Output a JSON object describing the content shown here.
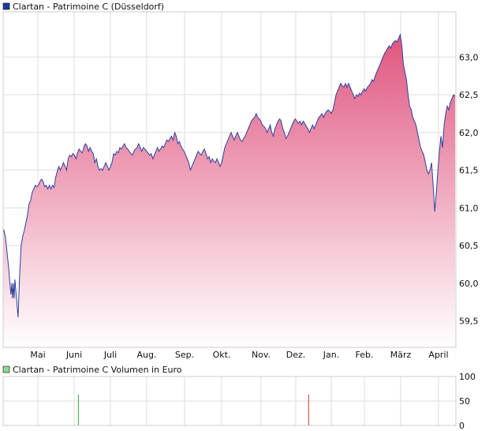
{
  "chart_data": [
    {
      "type": "area",
      "legend": "Clartan - Patrimoine C (Düsseldorf)",
      "x_ticks": [
        "Mai",
        "Juni",
        "Juli",
        "Aug.",
        "Sep.",
        "Okt.",
        "Nov.",
        "Dez.",
        "Jan.",
        "Feb.",
        "März",
        "April"
      ],
      "y_ticks": [
        "59,5",
        "60,0",
        "60,5",
        "61,0",
        "61,5",
        "62,0",
        "62,5",
        "63,0"
      ],
      "ylim": [
        59.15,
        63.6
      ],
      "grid": true,
      "line_color": "#2e3fa0",
      "fill_top_color": "#e0557f",
      "fill_bottom_color": "#ffffff",
      "points": [
        [
          0,
          60.67
        ],
        [
          1,
          60.7
        ],
        [
          3,
          60.6
        ],
        [
          5,
          60.4
        ],
        [
          7,
          60.2
        ],
        [
          9,
          59.95
        ],
        [
          10,
          59.85
        ],
        [
          11,
          60.0
        ],
        [
          12,
          59.8
        ],
        [
          13,
          60.0
        ],
        [
          14,
          59.8
        ],
        [
          15,
          60.05
        ],
        [
          17,
          59.8
        ],
        [
          19,
          59.55
        ],
        [
          21,
          60.1
        ],
        [
          23,
          60.5
        ],
        [
          25,
          60.62
        ],
        [
          27,
          60.7
        ],
        [
          29,
          60.8
        ],
        [
          31,
          60.9
        ],
        [
          33,
          61.05
        ],
        [
          35,
          61.1
        ],
        [
          37,
          61.2
        ],
        [
          39,
          61.25
        ],
        [
          41,
          61.3
        ],
        [
          43,
          61.28
        ],
        [
          45,
          61.3
        ],
        [
          47,
          61.35
        ],
        [
          49,
          61.38
        ],
        [
          51,
          61.35
        ],
        [
          53,
          61.28
        ],
        [
          55,
          61.3
        ],
        [
          57,
          61.25
        ],
        [
          59,
          61.3
        ],
        [
          61,
          61.25
        ],
        [
          63,
          61.3
        ],
        [
          65,
          61.27
        ],
        [
          67,
          61.4
        ],
        [
          69,
          61.48
        ],
        [
          71,
          61.55
        ],
        [
          73,
          61.5
        ],
        [
          75,
          61.55
        ],
        [
          77,
          61.6
        ],
        [
          79,
          61.55
        ],
        [
          81,
          61.5
        ],
        [
          83,
          61.65
        ],
        [
          85,
          61.7
        ],
        [
          87,
          61.68
        ],
        [
          89,
          61.72
        ],
        [
          91,
          61.7
        ],
        [
          93,
          61.65
        ],
        [
          95,
          61.73
        ],
        [
          97,
          61.78
        ],
        [
          99,
          61.75
        ],
        [
          101,
          61.73
        ],
        [
          103,
          61.8
        ],
        [
          105,
          61.85
        ],
        [
          107,
          61.82
        ],
        [
          109,
          61.75
        ],
        [
          111,
          61.8
        ],
        [
          113,
          61.75
        ],
        [
          115,
          61.72
        ],
        [
          117,
          61.6
        ],
        [
          119,
          61.65
        ],
        [
          121,
          61.55
        ],
        [
          123,
          61.5
        ],
        [
          125,
          61.52
        ],
        [
          127,
          61.5
        ],
        [
          129,
          61.55
        ],
        [
          131,
          61.6
        ],
        [
          133,
          61.55
        ],
        [
          135,
          61.5
        ],
        [
          137,
          61.55
        ],
        [
          139,
          61.6
        ],
        [
          141,
          61.72
        ],
        [
          143,
          61.7
        ],
        [
          145,
          61.75
        ],
        [
          147,
          61.73
        ],
        [
          149,
          61.8
        ],
        [
          151,
          61.78
        ],
        [
          153,
          61.82
        ],
        [
          155,
          61.85
        ],
        [
          157,
          61.8
        ],
        [
          159,
          61.78
        ],
        [
          161,
          61.75
        ],
        [
          163,
          61.72
        ],
        [
          165,
          61.7
        ],
        [
          167,
          61.75
        ],
        [
          169,
          61.78
        ],
        [
          171,
          61.8
        ],
        [
          173,
          61.85
        ],
        [
          175,
          61.8
        ],
        [
          177,
          61.75
        ],
        [
          179,
          61.8
        ],
        [
          181,
          61.78
        ],
        [
          183,
          61.75
        ],
        [
          185,
          61.73
        ],
        [
          187,
          61.7
        ],
        [
          189,
          61.72
        ],
        [
          191,
          61.65
        ],
        [
          193,
          61.7
        ],
        [
          195,
          61.75
        ],
        [
          197,
          61.8
        ],
        [
          199,
          61.75
        ],
        [
          201,
          61.78
        ],
        [
          203,
          61.82
        ],
        [
          205,
          61.8
        ],
        [
          207,
          61.85
        ],
        [
          209,
          61.9
        ],
        [
          211,
          61.88
        ],
        [
          213,
          61.92
        ],
        [
          215,
          61.95
        ],
        [
          217,
          61.9
        ],
        [
          219,
          62.0
        ],
        [
          221,
          61.95
        ],
        [
          223,
          61.85
        ],
        [
          225,
          61.88
        ],
        [
          227,
          61.82
        ],
        [
          229,
          61.78
        ],
        [
          231,
          61.75
        ],
        [
          233,
          61.7
        ],
        [
          235,
          61.65
        ],
        [
          237,
          61.6
        ],
        [
          239,
          61.5
        ],
        [
          241,
          61.55
        ],
        [
          243,
          61.6
        ],
        [
          245,
          61.65
        ],
        [
          247,
          61.7
        ],
        [
          249,
          61.75
        ],
        [
          251,
          61.72
        ],
        [
          253,
          61.7
        ],
        [
          255,
          61.75
        ],
        [
          257,
          61.78
        ],
        [
          259,
          61.72
        ],
        [
          261,
          61.65
        ],
        [
          263,
          61.68
        ],
        [
          265,
          61.6
        ],
        [
          267,
          61.65
        ],
        [
          269,
          61.62
        ],
        [
          271,
          61.6
        ],
        [
          273,
          61.65
        ],
        [
          275,
          61.6
        ],
        [
          277,
          61.55
        ],
        [
          279,
          61.6
        ],
        [
          281,
          61.7
        ],
        [
          283,
          61.8
        ],
        [
          285,
          61.85
        ],
        [
          287,
          61.9
        ],
        [
          289,
          61.95
        ],
        [
          291,
          62.0
        ],
        [
          293,
          61.95
        ],
        [
          295,
          61.9
        ],
        [
          297,
          61.95
        ],
        [
          299,
          62.0
        ],
        [
          301,
          61.95
        ],
        [
          303,
          61.9
        ],
        [
          305,
          61.88
        ],
        [
          307,
          61.92
        ],
        [
          309,
          61.95
        ],
        [
          311,
          62.0
        ],
        [
          313,
          62.05
        ],
        [
          315,
          62.1
        ],
        [
          317,
          62.15
        ],
        [
          319,
          62.18
        ],
        [
          321,
          62.2
        ],
        [
          323,
          62.25
        ],
        [
          325,
          62.2
        ],
        [
          327,
          62.18
        ],
        [
          329,
          62.15
        ],
        [
          331,
          62.1
        ],
        [
          333,
          62.08
        ],
        [
          335,
          62.05
        ],
        [
          337,
          62.0
        ],
        [
          339,
          62.05
        ],
        [
          341,
          62.1
        ],
        [
          343,
          62.0
        ],
        [
          345,
          61.95
        ],
        [
          347,
          62.05
        ],
        [
          349,
          62.1
        ],
        [
          351,
          62.15
        ],
        [
          353,
          62.18
        ],
        [
          355,
          62.15
        ],
        [
          357,
          62.05
        ],
        [
          359,
          62.0
        ],
        [
          361,
          61.92
        ],
        [
          363,
          61.95
        ],
        [
          365,
          62.0
        ],
        [
          367,
          62.05
        ],
        [
          369,
          62.1
        ],
        [
          371,
          62.15
        ],
        [
          373,
          62.18
        ],
        [
          375,
          62.15
        ],
        [
          377,
          62.12
        ],
        [
          379,
          62.15
        ],
        [
          381,
          62.1
        ],
        [
          383,
          62.15
        ],
        [
          385,
          62.12
        ],
        [
          387,
          62.08
        ],
        [
          389,
          62.05
        ],
        [
          391,
          62.0
        ],
        [
          393,
          62.05
        ],
        [
          395,
          62.1
        ],
        [
          397,
          62.05
        ],
        [
          399,
          62.1
        ],
        [
          401,
          62.15
        ],
        [
          403,
          62.2
        ],
        [
          405,
          62.22
        ],
        [
          407,
          62.25
        ],
        [
          409,
          62.2
        ],
        [
          411,
          62.25
        ],
        [
          413,
          62.28
        ],
        [
          415,
          62.3
        ],
        [
          417,
          62.28
        ],
        [
          419,
          62.25
        ],
        [
          421,
          62.3
        ],
        [
          423,
          62.4
        ],
        [
          425,
          62.5
        ],
        [
          427,
          62.55
        ],
        [
          429,
          62.6
        ],
        [
          431,
          62.65
        ],
        [
          433,
          62.62
        ],
        [
          435,
          62.6
        ],
        [
          437,
          62.65
        ],
        [
          439,
          62.6
        ],
        [
          441,
          62.65
        ],
        [
          443,
          62.6
        ],
        [
          445,
          62.55
        ],
        [
          447,
          62.5
        ],
        [
          449,
          62.45
        ],
        [
          451,
          62.5
        ],
        [
          453,
          62.48
        ],
        [
          455,
          62.52
        ],
        [
          457,
          62.5
        ],
        [
          459,
          62.55
        ],
        [
          461,
          62.58
        ],
        [
          463,
          62.55
        ],
        [
          465,
          62.6
        ],
        [
          467,
          62.62
        ],
        [
          469,
          62.65
        ],
        [
          471,
          62.7
        ],
        [
          473,
          62.68
        ],
        [
          475,
          62.75
        ],
        [
          477,
          62.8
        ],
        [
          479,
          62.85
        ],
        [
          481,
          62.9
        ],
        [
          483,
          62.95
        ],
        [
          485,
          63.0
        ],
        [
          487,
          63.05
        ],
        [
          489,
          63.08
        ],
        [
          491,
          63.12
        ],
        [
          493,
          63.15
        ],
        [
          495,
          63.12
        ],
        [
          497,
          63.18
        ],
        [
          499,
          63.2
        ],
        [
          501,
          63.22
        ],
        [
          503,
          63.2
        ],
        [
          505,
          63.25
        ],
        [
          507,
          63.3
        ],
        [
          509,
          63.15
        ],
        [
          511,
          62.9
        ],
        [
          513,
          62.8
        ],
        [
          515,
          62.7
        ],
        [
          517,
          62.5
        ],
        [
          519,
          62.35
        ],
        [
          521,
          62.3
        ],
        [
          523,
          62.2
        ],
        [
          525,
          62.15
        ],
        [
          527,
          62.1
        ],
        [
          529,
          62.0
        ],
        [
          531,
          61.9
        ],
        [
          533,
          61.8
        ],
        [
          535,
          61.75
        ],
        [
          537,
          61.7
        ],
        [
          539,
          61.6
        ],
        [
          541,
          61.5
        ],
        [
          543,
          61.45
        ],
        [
          545,
          61.5
        ],
        [
          547,
          61.6
        ],
        [
          549,
          61.3
        ],
        [
          551,
          60.95
        ],
        [
          553,
          61.2
        ],
        [
          555,
          61.5
        ],
        [
          557,
          61.75
        ],
        [
          559,
          61.95
        ],
        [
          561,
          61.8
        ],
        [
          563,
          62.1
        ],
        [
          565,
          62.25
        ],
        [
          567,
          62.35
        ],
        [
          569,
          62.3
        ],
        [
          571,
          62.4
        ],
        [
          573,
          62.45
        ],
        [
          575,
          62.5
        ],
        [
          577,
          62.48
        ]
      ]
    },
    {
      "type": "bar",
      "legend": "Clartan - Patrimoine C Volumen in Euro",
      "y_ticks": [
        "0",
        "50",
        "100"
      ],
      "ylim": [
        0,
        100
      ],
      "grid": true,
      "bars": [
        {
          "x": 96,
          "value": 63,
          "color": "#33aa33"
        },
        {
          "x": 390,
          "value": 63,
          "color": "#cc3333"
        }
      ]
    }
  ]
}
